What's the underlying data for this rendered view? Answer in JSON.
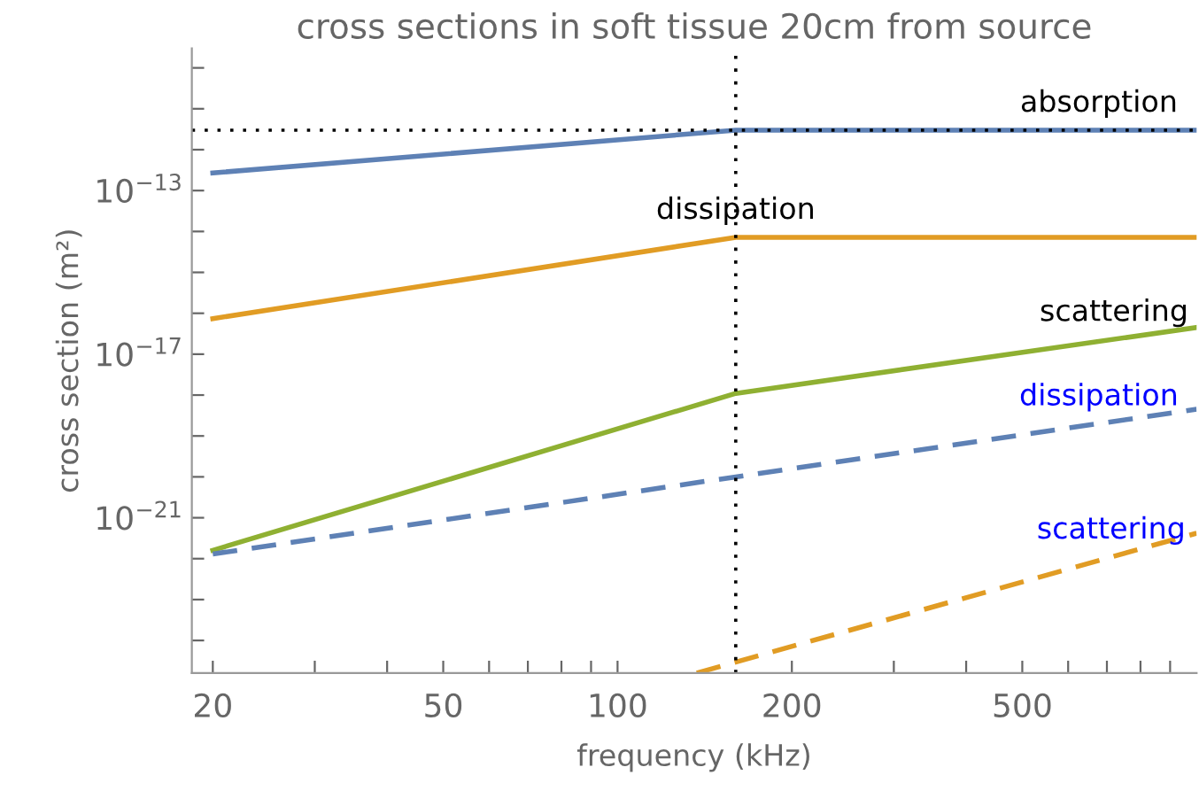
{
  "chart_data": {
    "type": "line",
    "title": "cross sections in soft tissue 20cm from source",
    "xlabel": "frequency (kHz)",
    "ylabel": "cross section (m²)",
    "log": "xy",
    "xlim": [
      18.4,
      1000
    ],
    "ylim": [
      1.6e-25,
      3e-10
    ],
    "xticks": [
      20,
      {
        "value": 30,
        "label": null
      },
      {
        "value": 40,
        "label": null
      },
      50,
      {
        "value": 60,
        "label": null
      },
      {
        "value": 70,
        "label": null
      },
      {
        "value": 80,
        "label": null
      },
      {
        "value": 90,
        "label": null
      },
      100,
      200,
      {
        "value": 300,
        "label": null
      },
      {
        "value": 400,
        "label": null
      },
      500,
      {
        "value": 600,
        "label": null
      },
      {
        "value": 700,
        "label": null
      },
      {
        "value": 800,
        "label": null
      },
      {
        "value": 900,
        "label": null
      }
    ],
    "yticks": [
      {
        "value": 1e-10,
        "label": null
      },
      {
        "value": 1e-11,
        "label": null
      },
      {
        "value": 1e-12,
        "label": null
      },
      {
        "value": 1e-13,
        "label": "10$^{−13}$"
      },
      {
        "value": 1e-14,
        "label": null
      },
      {
        "value": 1e-15,
        "label": null
      },
      {
        "value": 1e-16,
        "label": null
      },
      {
        "value": 1e-17,
        "label": "10$^{−17}$"
      },
      {
        "value": 1e-18,
        "label": null
      },
      {
        "value": 1e-19,
        "label": null
      },
      {
        "value": 1e-20,
        "label": null
      },
      {
        "value": 1e-21,
        "label": "10$^{−21}$"
      },
      {
        "value": 1e-22,
        "label": null
      },
      {
        "value": 1e-23,
        "label": null
      },
      {
        "value": 1e-24,
        "label": null
      }
    ],
    "grid": false,
    "series": [
      {
        "color": "#5e81b5",
        "line_style": "solid",
        "x": [
          20,
          160,
          1000
        ],
        "values": [
          2.7e-13,
          3e-12,
          3e-12
        ]
      },
      {
        "color": "#e19c24",
        "line_style": "solid",
        "x": [
          20,
          160,
          1000
        ],
        "values": [
          7.4e-17,
          7.2e-15,
          7.2e-15
        ]
      },
      {
        "color": "#8fb032",
        "line_style": "solid",
        "x": [
          20,
          160,
          1000
        ],
        "values": [
          1.6e-22,
          1.1e-18,
          4.5e-17
        ]
      },
      {
        "color": "#5e81b5",
        "line_style": "dashed",
        "x": [
          20,
          160,
          1000
        ],
        "values": [
          1.3e-22,
          1e-20,
          4.5e-19
        ]
      },
      {
        "color": "#e19c24",
        "line_style": "dashed",
        "x": [
          137,
          1000
        ],
        "values": [
          1.6e-25,
          4.2e-22
        ]
      }
    ],
    "ref_lines": [
      {
        "axis": "x",
        "value": 160,
        "color": "#000000",
        "line_style": "dotted"
      },
      {
        "axis": "y",
        "value": 3e-12,
        "color": "#000000",
        "line_style": "dotted"
      }
    ],
    "annotations": [
      {
        "text": "absorption",
        "x": 678,
        "y": 3e-12
      },
      {
        "text": "dissipation",
        "x": 160,
        "y": 7.2e-15
      },
      {
        "text": "scattering",
        "x": 720,
        "y": 2.3e-17
      },
      {
        "text": "dissipation",
        "x": 678,
        "y": 2e-19
      },
      {
        "text": "scattering",
        "x": 712,
        "y": 1.1e-22
      }
    ]
  }
}
